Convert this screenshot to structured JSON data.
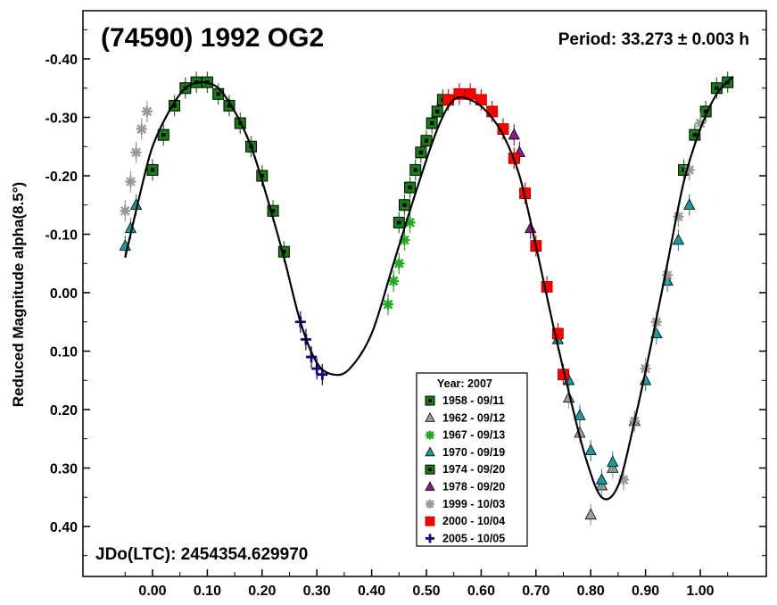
{
  "chart_data": {
    "type": "scatter",
    "title": "(74590)  1992 OG2",
    "period_text": "Period: 33.273 ± 0.003 h",
    "epoch_text": "JDo(LTC): 2454354.629970",
    "xlabel": "",
    "ylabel": "Reduced Magnitude alpha(8.5°)",
    "xlim": [
      -0.13,
      1.12
    ],
    "ylim": [
      0.46,
      -0.46
    ],
    "y_inverted": true,
    "x_ticks": [
      "0.00",
      "0.10",
      "0.20",
      "0.30",
      "0.40",
      "0.50",
      "0.60",
      "0.70",
      "0.80",
      "0.90",
      "1.00"
    ],
    "y_ticks": [
      "-0.40",
      "-0.30",
      "-0.20",
      "-0.10",
      "0.00",
      "0.10",
      "0.20",
      "0.30",
      "0.40"
    ],
    "grid": false,
    "legend": {
      "title": "Year: 2007",
      "position": "bottom-center",
      "entries": [
        {
          "label": "1958 - 09/11",
          "marker": "square-dot",
          "color": "#1a7a1a"
        },
        {
          "label": "1962 - 09/12",
          "marker": "triangle",
          "color": "#a0a0a0"
        },
        {
          "label": "1967 - 09/13",
          "marker": "asterisk",
          "color": "#22aa22"
        },
        {
          "label": "1970 - 09/19",
          "marker": "triangle",
          "color": "#1a9a9a"
        },
        {
          "label": "1974 - 09/20",
          "marker": "square-dot",
          "color": "#1a7a1a"
        },
        {
          "label": "1978 - 09/20",
          "marker": "triangle",
          "color": "#8a1a8a"
        },
        {
          "label": "1999 - 10/03",
          "marker": "asterisk",
          "color": "#999999"
        },
        {
          "label": "2000 - 10/04",
          "marker": "square",
          "color": "#ff0000"
        },
        {
          "label": "2005 - 10/05",
          "marker": "plus",
          "color": "#0a0a80"
        }
      ]
    },
    "fit_curve": {
      "color": "#000000",
      "points": [
        [
          -0.05,
          -0.06
        ],
        [
          -0.02,
          -0.18
        ],
        [
          0.0,
          -0.25
        ],
        [
          0.03,
          -0.31
        ],
        [
          0.06,
          -0.35
        ],
        [
          0.09,
          -0.36
        ],
        [
          0.12,
          -0.35
        ],
        [
          0.15,
          -0.31
        ],
        [
          0.18,
          -0.25
        ],
        [
          0.21,
          -0.16
        ],
        [
          0.24,
          -0.06
        ],
        [
          0.27,
          0.05
        ],
        [
          0.3,
          0.12
        ],
        [
          0.33,
          0.14
        ],
        [
          0.36,
          0.13
        ],
        [
          0.4,
          0.07
        ],
        [
          0.44,
          -0.05
        ],
        [
          0.48,
          -0.17
        ],
        [
          0.52,
          -0.28
        ],
        [
          0.55,
          -0.33
        ],
        [
          0.58,
          -0.33
        ],
        [
          0.61,
          -0.31
        ],
        [
          0.64,
          -0.27
        ],
        [
          0.67,
          -0.2
        ],
        [
          0.7,
          -0.08
        ],
        [
          0.73,
          0.05
        ],
        [
          0.76,
          0.17
        ],
        [
          0.79,
          0.28
        ],
        [
          0.82,
          0.35
        ],
        [
          0.85,
          0.33
        ],
        [
          0.88,
          0.22
        ],
        [
          0.91,
          0.09
        ],
        [
          0.94,
          -0.05
        ],
        [
          0.97,
          -0.19
        ],
        [
          1.0,
          -0.28
        ],
        [
          1.03,
          -0.34
        ],
        [
          1.06,
          -0.37
        ]
      ]
    },
    "series": [
      {
        "name": "1958 - 09/11",
        "marker": "square-dot",
        "color": "#1a7a1a",
        "x": [
          0.0,
          0.02,
          0.04,
          0.06,
          0.08,
          0.1,
          0.12,
          0.14,
          0.16,
          0.18,
          0.2,
          0.22,
          0.24,
          0.97,
          0.99,
          1.01,
          1.03,
          1.05
        ],
        "y": [
          -0.21,
          -0.27,
          -0.32,
          -0.35,
          -0.36,
          -0.36,
          -0.34,
          -0.32,
          -0.29,
          -0.25,
          -0.2,
          -0.14,
          -0.07,
          -0.21,
          -0.27,
          -0.31,
          -0.35,
          -0.36
        ]
      },
      {
        "name": "1962 - 09/12",
        "marker": "triangle",
        "color": "#a0a0a0",
        "x": [
          0.76,
          0.78,
          0.8,
          0.82,
          0.84
        ],
        "y": [
          0.18,
          0.24,
          0.38,
          0.33,
          0.3
        ]
      },
      {
        "name": "1967 - 09/13",
        "marker": "asterisk",
        "color": "#22aa22",
        "x": [
          0.43,
          0.44,
          0.45,
          0.46,
          0.47
        ],
        "y": [
          0.02,
          -0.02,
          -0.05,
          -0.09,
          -0.12
        ]
      },
      {
        "name": "1970 - 09/19",
        "marker": "triangle",
        "color": "#1a9a9a",
        "x": [
          -0.05,
          -0.04,
          -0.03,
          0.74,
          0.76,
          0.78,
          0.8,
          0.82,
          0.84,
          0.88,
          0.9,
          0.92,
          0.94,
          0.96,
          0.98
        ],
        "y": [
          -0.08,
          -0.11,
          -0.15,
          0.08,
          0.15,
          0.21,
          0.27,
          0.32,
          0.29,
          0.22,
          0.15,
          0.07,
          -0.02,
          -0.09,
          -0.15
        ]
      },
      {
        "name": "1974 - 09/20",
        "marker": "square-dot",
        "color": "#1a7a1a",
        "x": [
          0.45,
          0.46,
          0.47,
          0.48,
          0.49,
          0.5,
          0.51,
          0.52,
          0.53
        ],
        "y": [
          -0.12,
          -0.15,
          -0.18,
          -0.21,
          -0.24,
          -0.26,
          -0.29,
          -0.31,
          -0.33
        ]
      },
      {
        "name": "1978 - 09/20",
        "marker": "triangle",
        "color": "#8a1a8a",
        "x": [
          0.66,
          0.67,
          0.69
        ],
        "y": [
          -0.27,
          -0.24,
          -0.11
        ]
      },
      {
        "name": "1999 - 10/03",
        "marker": "asterisk",
        "color": "#999999",
        "x": [
          -0.05,
          -0.04,
          -0.03,
          -0.02,
          -0.01,
          0.86,
          0.88,
          0.9,
          0.92,
          0.94,
          0.96,
          0.98,
          1.0
        ],
        "y": [
          -0.14,
          -0.19,
          -0.24,
          -0.28,
          -0.31,
          0.32,
          0.22,
          0.13,
          0.05,
          -0.03,
          -0.13,
          -0.21,
          -0.29
        ]
      },
      {
        "name": "2000 - 10/04",
        "marker": "square",
        "color": "#ff0000",
        "x": [
          0.54,
          0.56,
          0.58,
          0.6,
          0.62,
          0.64,
          0.66,
          0.68,
          0.7,
          0.72,
          0.74,
          0.75
        ],
        "y": [
          -0.33,
          -0.34,
          -0.34,
          -0.33,
          -0.31,
          -0.28,
          -0.23,
          -0.17,
          -0.08,
          -0.01,
          0.07,
          0.14
        ]
      },
      {
        "name": "2005 - 10/05",
        "marker": "plus",
        "color": "#0a0a80",
        "x": [
          0.27,
          0.28,
          0.29,
          0.3,
          0.31
        ],
        "y": [
          0.05,
          0.08,
          0.11,
          0.13,
          0.14
        ]
      }
    ]
  }
}
